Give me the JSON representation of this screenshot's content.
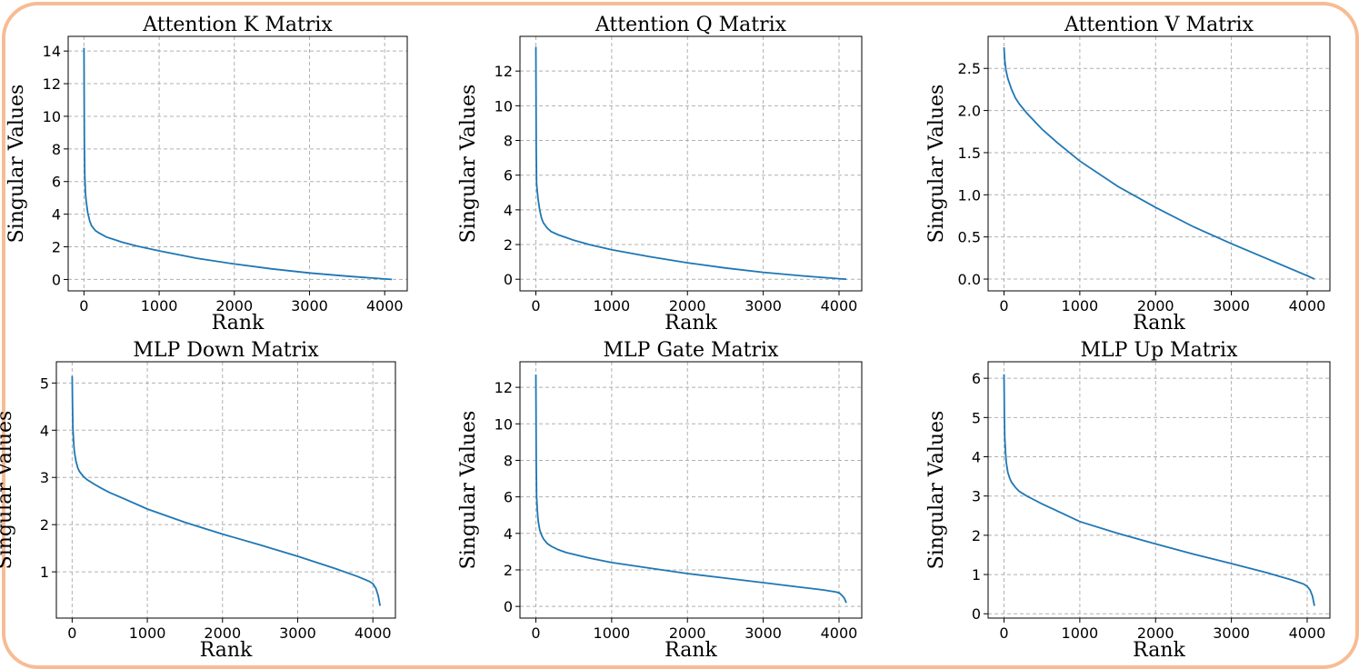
{
  "colors": {
    "frame_border": "#f7bc94",
    "line": "#1f77b4",
    "grid": "#b0b0b0"
  },
  "chart_data": [
    {
      "type": "line",
      "title": "Attention K Matrix",
      "xlabel": "Rank",
      "ylabel": "Singular Values",
      "xlim": [
        -210,
        4300
      ],
      "ylim": [
        -0.7,
        14.9
      ],
      "xticks": [
        0,
        1000,
        2000,
        3000,
        4000
      ],
      "yticks": [
        0,
        2,
        4,
        6,
        8,
        10,
        12,
        14
      ],
      "ytick_labels": [
        "0",
        "2",
        "4",
        "6",
        "8",
        "10",
        "12",
        "14"
      ],
      "grid": true,
      "series": [
        {
          "x": [
            0,
            5,
            10,
            20,
            30,
            50,
            75,
            100,
            150,
            200,
            300,
            400,
            500,
            700,
            1000,
            1500,
            2000,
            2500,
            3000,
            3500,
            4000,
            4096
          ],
          "y": [
            14.2,
            8.5,
            6.5,
            5.3,
            4.8,
            4.1,
            3.6,
            3.3,
            3.0,
            2.85,
            2.6,
            2.45,
            2.3,
            2.05,
            1.75,
            1.3,
            0.95,
            0.65,
            0.4,
            0.2,
            0.03,
            0.0
          ]
        }
      ]
    },
    {
      "type": "line",
      "title": "Attention Q Matrix",
      "xlabel": "Rank",
      "ylabel": "Singular Values",
      "xlim": [
        -210,
        4300
      ],
      "ylim": [
        -0.67,
        14.0
      ],
      "xticks": [
        0,
        1000,
        2000,
        3000,
        4000
      ],
      "yticks": [
        0,
        2,
        4,
        6,
        8,
        10,
        12
      ],
      "ytick_labels": [
        "0",
        "2",
        "4",
        "6",
        "8",
        "10",
        "12"
      ],
      "grid": true,
      "series": [
        {
          "x": [
            0,
            5,
            10,
            20,
            30,
            50,
            75,
            100,
            150,
            200,
            300,
            400,
            500,
            700,
            1000,
            1500,
            2000,
            2500,
            3000,
            3500,
            4000,
            4096
          ],
          "y": [
            13.4,
            7.5,
            5.5,
            5.0,
            4.6,
            4.0,
            3.5,
            3.25,
            2.95,
            2.75,
            2.55,
            2.4,
            2.25,
            2.0,
            1.7,
            1.3,
            0.95,
            0.65,
            0.4,
            0.2,
            0.03,
            0.0
          ]
        }
      ]
    },
    {
      "type": "line",
      "title": "Attention V Matrix",
      "xlabel": "Rank",
      "ylabel": "Singular Values",
      "xlim": [
        -210,
        4300
      ],
      "ylim": [
        -0.14,
        2.88
      ],
      "xticks": [
        0,
        1000,
        2000,
        3000,
        4000
      ],
      "yticks": [
        0.0,
        0.5,
        1.0,
        1.5,
        2.0,
        2.5
      ],
      "ytick_labels": [
        "0.0",
        "0.5",
        "1.0",
        "1.5",
        "2.0",
        "2.5"
      ],
      "grid": true,
      "series": [
        {
          "x": [
            0,
            10,
            25,
            50,
            100,
            150,
            200,
            300,
            500,
            700,
            1000,
            1500,
            2000,
            2500,
            3000,
            3500,
            4000,
            4096
          ],
          "y": [
            2.75,
            2.6,
            2.48,
            2.38,
            2.25,
            2.15,
            2.08,
            1.97,
            1.78,
            1.62,
            1.4,
            1.1,
            0.85,
            0.62,
            0.42,
            0.23,
            0.04,
            0.0
          ]
        }
      ]
    },
    {
      "type": "line",
      "title": "MLP Down Matrix",
      "xlabel": "Rank",
      "ylabel": "Singular Values",
      "xlim": [
        -210,
        4300
      ],
      "ylim": [
        0.02,
        5.45
      ],
      "xticks": [
        0,
        1000,
        2000,
        3000,
        4000
      ],
      "yticks": [
        1,
        2,
        3,
        4,
        5
      ],
      "ytick_labels": [
        "1",
        "2",
        "3",
        "4",
        "5"
      ],
      "grid": true,
      "series": [
        {
          "x": [
            0,
            5,
            10,
            20,
            30,
            50,
            75,
            100,
            150,
            200,
            300,
            400,
            500,
            700,
            1000,
            1500,
            2000,
            2500,
            3000,
            3500,
            3800,
            3950,
            4000,
            4040,
            4070,
            4096
          ],
          "y": [
            5.15,
            4.5,
            4.05,
            3.75,
            3.55,
            3.35,
            3.2,
            3.12,
            3.02,
            2.95,
            2.85,
            2.76,
            2.68,
            2.54,
            2.33,
            2.05,
            1.8,
            1.57,
            1.33,
            1.07,
            0.9,
            0.8,
            0.75,
            0.65,
            0.5,
            0.28
          ]
        }
      ]
    },
    {
      "type": "line",
      "title": "MLP Gate Matrix",
      "xlabel": "Rank",
      "ylabel": "Singular Values",
      "xlim": [
        -210,
        4300
      ],
      "ylim": [
        -0.64,
        13.4
      ],
      "xticks": [
        0,
        1000,
        2000,
        3000,
        4000
      ],
      "yticks": [
        0,
        2,
        4,
        6,
        8,
        10,
        12
      ],
      "ytick_labels": [
        "0",
        "2",
        "4",
        "6",
        "8",
        "10",
        "12"
      ],
      "grid": true,
      "series": [
        {
          "x": [
            0,
            5,
            10,
            20,
            30,
            50,
            75,
            100,
            150,
            200,
            300,
            400,
            500,
            700,
            1000,
            1500,
            2000,
            2500,
            3000,
            3500,
            3800,
            3950,
            4000,
            4040,
            4070,
            4096
          ],
          "y": [
            12.7,
            8.0,
            6.0,
            5.2,
            4.7,
            4.2,
            3.9,
            3.7,
            3.45,
            3.3,
            3.1,
            2.95,
            2.85,
            2.65,
            2.4,
            2.1,
            1.8,
            1.55,
            1.3,
            1.05,
            0.9,
            0.8,
            0.75,
            0.6,
            0.45,
            0.2
          ]
        }
      ]
    },
    {
      "type": "line",
      "title": "MLP Up Matrix",
      "xlabel": "Rank",
      "ylabel": "Singular Values",
      "xlim": [
        -210,
        4300
      ],
      "ylim": [
        -0.11,
        6.42
      ],
      "xticks": [
        0,
        1000,
        2000,
        3000,
        4000
      ],
      "yticks": [
        0,
        1,
        2,
        3,
        4,
        5,
        6
      ],
      "ytick_labels": [
        "0",
        "1",
        "2",
        "3",
        "4",
        "5",
        "6"
      ],
      "grid": true,
      "series": [
        {
          "x": [
            0,
            5,
            10,
            20,
            30,
            50,
            75,
            100,
            150,
            200,
            300,
            400,
            500,
            700,
            1000,
            1500,
            2000,
            2500,
            3000,
            3500,
            3800,
            3950,
            4000,
            4040,
            4070,
            4096
          ],
          "y": [
            6.1,
            5.0,
            4.5,
            4.1,
            3.85,
            3.6,
            3.45,
            3.35,
            3.22,
            3.12,
            3.0,
            2.9,
            2.8,
            2.62,
            2.35,
            2.05,
            1.78,
            1.52,
            1.28,
            1.03,
            0.86,
            0.76,
            0.7,
            0.6,
            0.45,
            0.2
          ]
        }
      ]
    }
  ]
}
